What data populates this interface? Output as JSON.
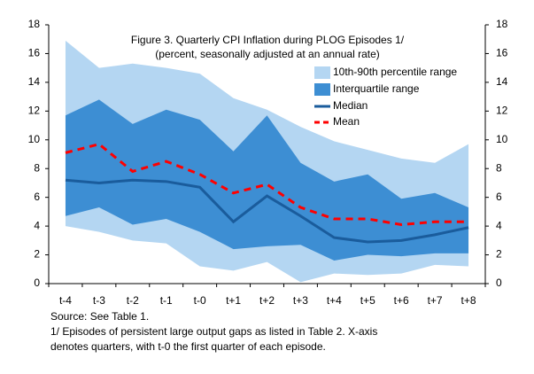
{
  "chart_data": {
    "type": "line",
    "title": "Figure 3. Quarterly CPI Inflation during PLOG Episodes 1/",
    "subtitle": "(percent, seasonally adjusted at an annual rate)",
    "categories": [
      "t-4",
      "t-3",
      "t-2",
      "t-1",
      "t-0",
      "t+1",
      "t+2",
      "t+3",
      "t+4",
      "t+5",
      "t+6",
      "t+7",
      "t+8"
    ],
    "bands": [
      {
        "name": "10th-90th percentile range",
        "color": "#b4d6f2",
        "low": [
          4.0,
          3.6,
          3.0,
          2.8,
          1.2,
          0.9,
          1.5,
          0.1,
          0.7,
          0.6,
          0.7,
          1.3,
          1.2
        ],
        "high": [
          16.9,
          15.0,
          15.3,
          15.0,
          14.6,
          12.9,
          12.1,
          10.9,
          9.9,
          9.3,
          8.7,
          8.4,
          9.7
        ]
      },
      {
        "name": "Interquartile range",
        "color": "#3d8ed3",
        "low": [
          4.7,
          5.3,
          4.1,
          4.5,
          3.6,
          2.4,
          2.6,
          2.7,
          1.6,
          2.0,
          1.9,
          2.1,
          2.1
        ],
        "high": [
          11.7,
          12.8,
          11.1,
          12.1,
          11.4,
          9.2,
          11.7,
          8.4,
          7.1,
          7.6,
          5.9,
          6.3,
          5.3
        ]
      }
    ],
    "series": [
      {
        "name": "Median",
        "color": "#1a5c9c",
        "dashed": false,
        "values": [
          7.2,
          7.0,
          7.2,
          7.1,
          6.7,
          4.3,
          6.1,
          4.7,
          3.2,
          2.9,
          3.0,
          3.4,
          3.9
        ]
      },
      {
        "name": "Mean",
        "color": "#ff0000",
        "dashed": true,
        "values": [
          9.1,
          9.7,
          7.8,
          8.5,
          7.6,
          6.3,
          6.9,
          5.3,
          4.5,
          4.5,
          4.1,
          4.3,
          4.3
        ]
      }
    ],
    "ylim": [
      0,
      18
    ],
    "yticks": [
      0,
      2,
      4,
      6,
      8,
      10,
      12,
      14,
      16,
      18
    ],
    "y2lim": [
      0,
      18
    ],
    "y2ticks": [
      0,
      2,
      4,
      6,
      8,
      10,
      12,
      14,
      16,
      18
    ],
    "notes": [
      "Source: See Table 1.",
      "1/ Episodes of persistent large output gaps as listed in Table 2. X-axis",
      "denotes quarters, with t-0 the first quarter of each episode."
    ]
  }
}
